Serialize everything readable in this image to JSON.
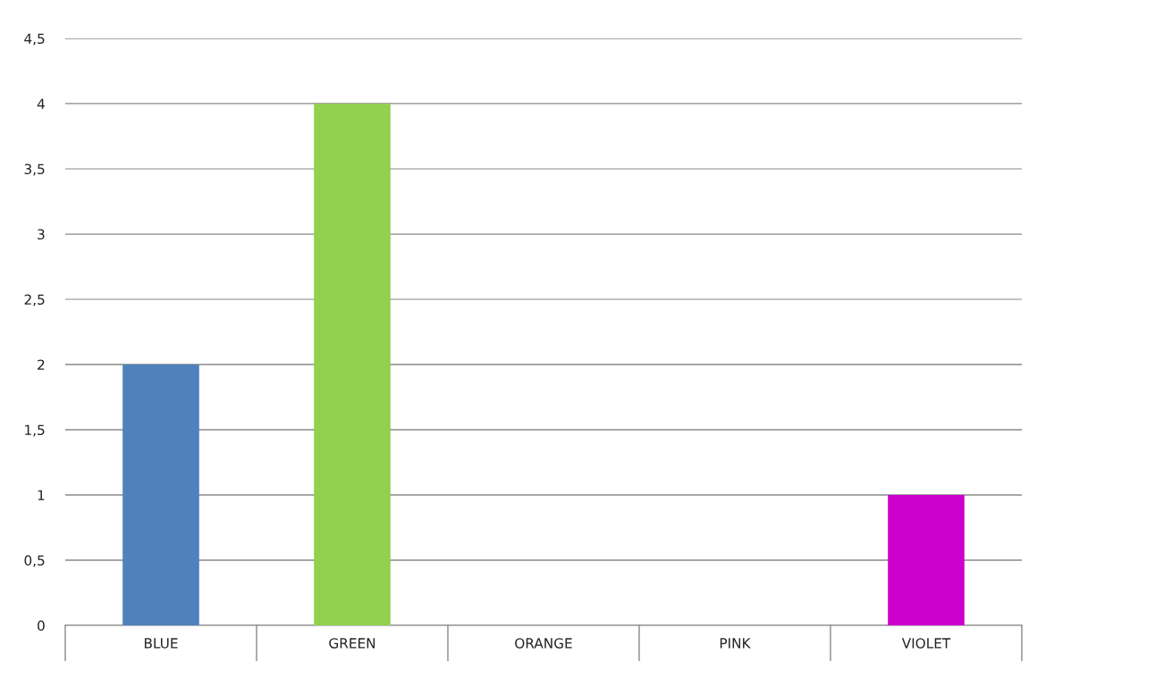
{
  "chart_data": {
    "type": "bar",
    "categories": [
      "BLUE",
      "GREEN",
      "ORANGE",
      "PINK",
      "VIOLET"
    ],
    "values": [
      2,
      4,
      0,
      0,
      1
    ],
    "colors": [
      "#4f81bd",
      "#92d050",
      "#f79646",
      "#ff99cc",
      "#cc00cc"
    ],
    "ylim": [
      0,
      4.5
    ],
    "yticks": [
      0,
      {
        "value": 0.5,
        "label": "0,5"
      },
      1,
      {
        "value": 1.5,
        "label": "1,5"
      },
      2,
      {
        "value": 2.5,
        "label": "2,5"
      },
      3,
      {
        "value": 3.5,
        "label": "3,5"
      },
      4,
      {
        "value": 4.5,
        "label": "4,5"
      }
    ],
    "grid": "y",
    "legend": false
  }
}
